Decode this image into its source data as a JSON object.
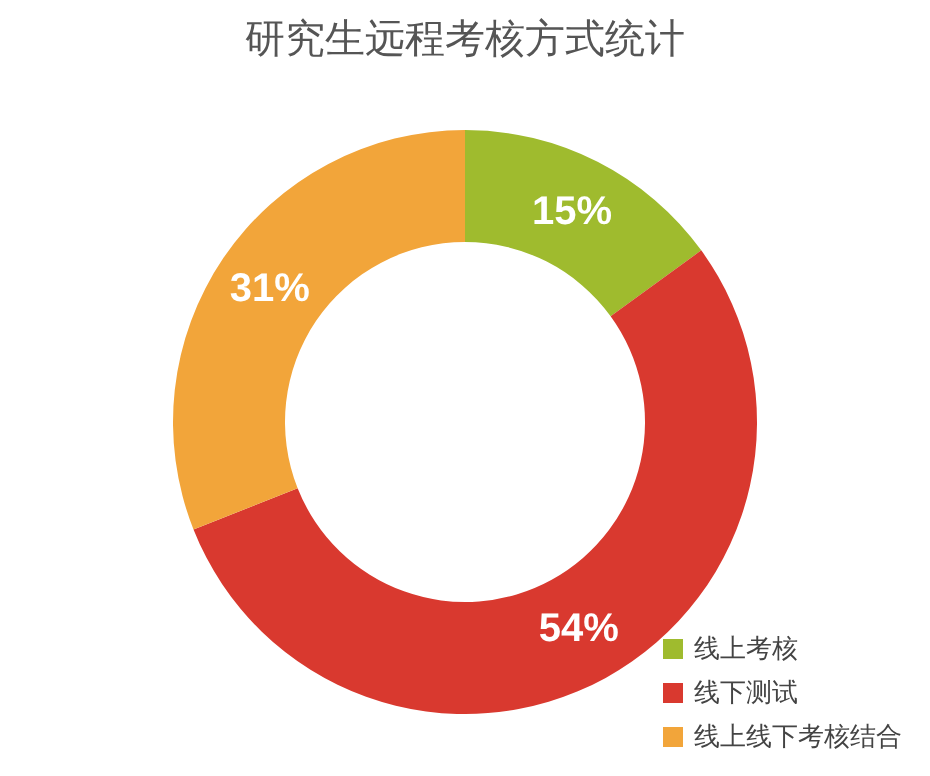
{
  "chart_data": {
    "type": "donut",
    "title": "研究生远程考核方式统计",
    "categories": [
      "线上考核",
      "线下测试",
      "线上线下考核结合"
    ],
    "values": [
      15,
      54,
      31
    ],
    "colors": [
      "#9fbb2e",
      "#d9392f",
      "#f2a53a"
    ],
    "value_labels": [
      "15%",
      "54%",
      "31%"
    ],
    "legend": "bottom right"
  }
}
